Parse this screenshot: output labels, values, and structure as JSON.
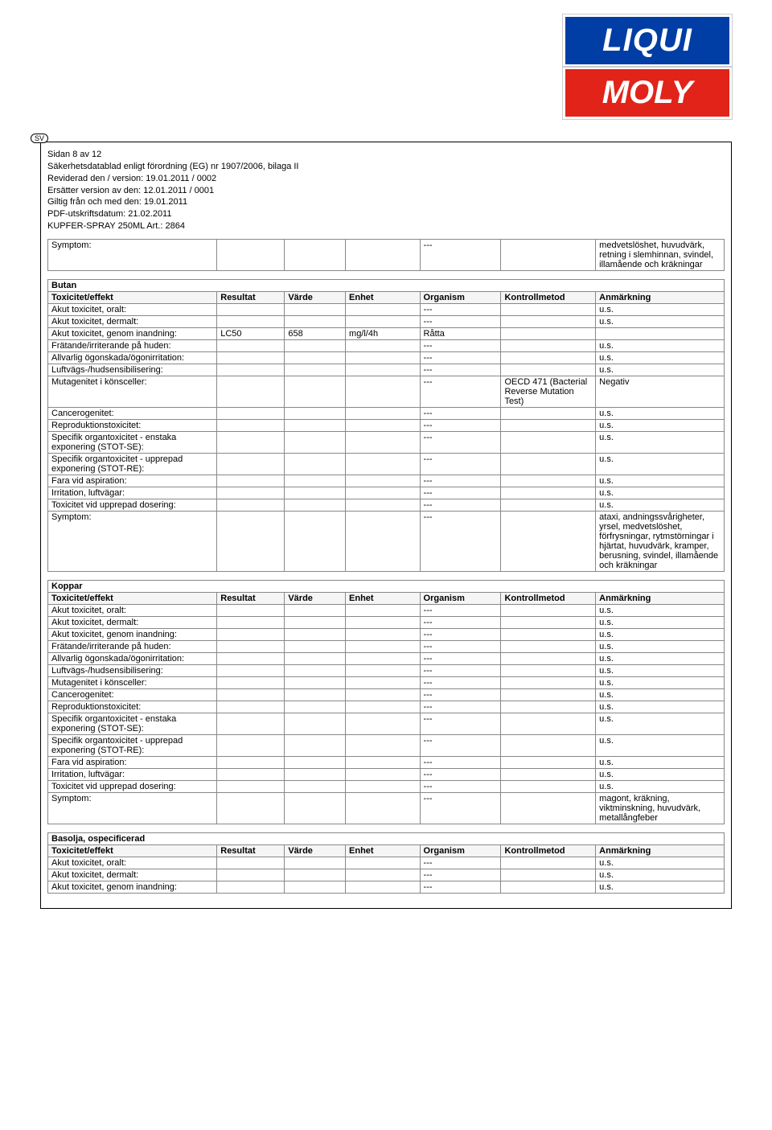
{
  "logo": {
    "top": "LIQUI",
    "bottom": "MOLY"
  },
  "sv_badge": "SV",
  "header": {
    "page": "Sidan  8 av 12",
    "l1": "Säkerhetsdatablad enligt förordning (EG) nr 1907/2006, bilaga II",
    "l2": "Reviderad den / version: 19.01.2011  / 0002",
    "l3": "Ersätter version av den: 12.01.2011  / 0001",
    "l4": "Giltig från och med den: 19.01.2011",
    "l5": "PDF-utskriftsdatum: 21.02.2011",
    "l6": "KUPFER-SPRAY 250ML Art.: 2864"
  },
  "columns": {
    "tox": "Toxicitet/effekt",
    "res": "Resultat",
    "val": "Värde",
    "unit": "Enhet",
    "org": "Organism",
    "ctrl": "Kontrollmetod",
    "note": "Anmärkning"
  },
  "symptom_top": {
    "label": "Symptom:",
    "dash": "---",
    "note": "medvetslöshet, huvudvärk, retning i slemhinnan, svindel, illamående och kräkningar"
  },
  "sections": [
    {
      "name": "Butan",
      "rows": [
        {
          "label": "Akut toxicitet, oralt:",
          "r": "",
          "v": "",
          "u": "",
          "o": "---",
          "c": "",
          "n": "u.s."
        },
        {
          "label": "Akut toxicitet, dermalt:",
          "r": "",
          "v": "",
          "u": "",
          "o": "---",
          "c": "",
          "n": "u.s."
        },
        {
          "label": "Akut toxicitet, genom inandning:",
          "r": "LC50",
          "v": "658",
          "u": "mg/l/4h",
          "o": "Råtta",
          "c": "",
          "n": ""
        },
        {
          "label": "Frätande/irriterande på huden:",
          "r": "",
          "v": "",
          "u": "",
          "o": "---",
          "c": "",
          "n": "u.s."
        },
        {
          "label": "Allvarlig ögonskada/ögonirritation:",
          "r": "",
          "v": "",
          "u": "",
          "o": "---",
          "c": "",
          "n": "u.s."
        },
        {
          "label": "Luftvägs-/hudsensibilisering:",
          "r": "",
          "v": "",
          "u": "",
          "o": "---",
          "c": "",
          "n": "u.s."
        },
        {
          "label": "Mutagenitet i könsceller:",
          "r": "",
          "v": "",
          "u": "",
          "o": "---",
          "c": "OECD 471 (Bacterial Reverse Mutation Test)",
          "n": "Negativ"
        },
        {
          "label": "Cancerogenitet:",
          "r": "",
          "v": "",
          "u": "",
          "o": "---",
          "c": "",
          "n": "u.s."
        },
        {
          "label": "Reproduktionstoxicitet:",
          "r": "",
          "v": "",
          "u": "",
          "o": "---",
          "c": "",
          "n": "u.s."
        },
        {
          "label": "Specifik organtoxicitet - enstaka exponering (STOT-SE):",
          "r": "",
          "v": "",
          "u": "",
          "o": "---",
          "c": "",
          "n": "u.s."
        },
        {
          "label": "Specifik organtoxicitet - upprepad exponering (STOT-RE):",
          "r": "",
          "v": "",
          "u": "",
          "o": "---",
          "c": "",
          "n": "u.s."
        },
        {
          "label": "Fara vid aspiration:",
          "r": "",
          "v": "",
          "u": "",
          "o": "---",
          "c": "",
          "n": "u.s."
        },
        {
          "label": "Irritation, luftvägar:",
          "r": "",
          "v": "",
          "u": "",
          "o": "---",
          "c": "",
          "n": "u.s."
        },
        {
          "label": "Toxicitet vid upprepad dosering:",
          "r": "",
          "v": "",
          "u": "",
          "o": "---",
          "c": "",
          "n": "u.s."
        },
        {
          "label": "Symptom:",
          "r": "",
          "v": "",
          "u": "",
          "o": "---",
          "c": "",
          "n": "ataxi, andningssvårigheter, yrsel, medvetslöshet, förfrysningar, rytmstörningar i hjärtat, huvudvärk, kramper, berusning, svindel, illamående och kräkningar"
        }
      ]
    },
    {
      "name": "Koppar",
      "rows": [
        {
          "label": "Akut toxicitet, oralt:",
          "r": "",
          "v": "",
          "u": "",
          "o": "---",
          "c": "",
          "n": "u.s."
        },
        {
          "label": "Akut toxicitet, dermalt:",
          "r": "",
          "v": "",
          "u": "",
          "o": "---",
          "c": "",
          "n": "u.s."
        },
        {
          "label": "Akut toxicitet, genom inandning:",
          "r": "",
          "v": "",
          "u": "",
          "o": "---",
          "c": "",
          "n": "u.s."
        },
        {
          "label": "Frätande/irriterande på huden:",
          "r": "",
          "v": "",
          "u": "",
          "o": "---",
          "c": "",
          "n": "u.s."
        },
        {
          "label": "Allvarlig ögonskada/ögonirritation:",
          "r": "",
          "v": "",
          "u": "",
          "o": "---",
          "c": "",
          "n": "u.s."
        },
        {
          "label": "Luftvägs-/hudsensibilisering:",
          "r": "",
          "v": "",
          "u": "",
          "o": "---",
          "c": "",
          "n": "u.s."
        },
        {
          "label": "Mutagenitet i könsceller:",
          "r": "",
          "v": "",
          "u": "",
          "o": "---",
          "c": "",
          "n": "u.s."
        },
        {
          "label": "Cancerogenitet:",
          "r": "",
          "v": "",
          "u": "",
          "o": "---",
          "c": "",
          "n": "u.s."
        },
        {
          "label": "Reproduktionstoxicitet:",
          "r": "",
          "v": "",
          "u": "",
          "o": "---",
          "c": "",
          "n": "u.s."
        },
        {
          "label": "Specifik organtoxicitet - enstaka exponering (STOT-SE):",
          "r": "",
          "v": "",
          "u": "",
          "o": "---",
          "c": "",
          "n": "u.s."
        },
        {
          "label": "Specifik organtoxicitet - upprepad exponering (STOT-RE):",
          "r": "",
          "v": "",
          "u": "",
          "o": "---",
          "c": "",
          "n": "u.s."
        },
        {
          "label": "Fara vid aspiration:",
          "r": "",
          "v": "",
          "u": "",
          "o": "---",
          "c": "",
          "n": "u.s."
        },
        {
          "label": "Irritation, luftvägar:",
          "r": "",
          "v": "",
          "u": "",
          "o": "---",
          "c": "",
          "n": "u.s."
        },
        {
          "label": "Toxicitet vid upprepad dosering:",
          "r": "",
          "v": "",
          "u": "",
          "o": "---",
          "c": "",
          "n": "u.s."
        },
        {
          "label": "Symptom:",
          "r": "",
          "v": "",
          "u": "",
          "o": "---",
          "c": "",
          "n": "magont, kräkning, viktminskning, huvudvärk, metallångfeber"
        }
      ]
    },
    {
      "name": "Basolja, ospecificerad",
      "rows": [
        {
          "label": "Akut toxicitet, oralt:",
          "r": "",
          "v": "",
          "u": "",
          "o": "---",
          "c": "",
          "n": "u.s."
        },
        {
          "label": "Akut toxicitet, dermalt:",
          "r": "",
          "v": "",
          "u": "",
          "o": "---",
          "c": "",
          "n": "u.s."
        },
        {
          "label": "Akut toxicitet, genom inandning:",
          "r": "",
          "v": "",
          "u": "",
          "o": "---",
          "c": "",
          "n": "u.s."
        }
      ]
    }
  ]
}
